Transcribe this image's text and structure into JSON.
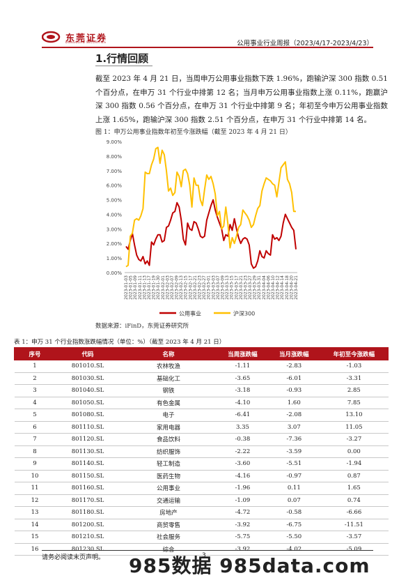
{
  "header": {
    "logo_text": "东莞证券",
    "logo_sub": "DONGGUAN SECURITIES",
    "report_title": "公用事业行业周报（2023/4/17-2023/4/23）"
  },
  "section": {
    "title": "1.行情回顾"
  },
  "paragraph": "截至 2023 年 4 月 21 日，当周申万公用事业指数下跌 1.96%，跑输沪深 300 指数 0.51 个百分点，在申万 31 个行业中排第 12 名；当月申万公用事业指数上涨 0.11%，跑赢沪深 300 指数 0.56 个百分点，在申万 31 个行业中排第 9 名；年初至今申万公用事业指数上涨 1.65%，跑输沪深 300 指数 2.51 个百分点，在申万 31 个行业中排第 14 名。",
  "figure": {
    "caption": "图 1：申万公用事业指数年初至今涨跌幅（截至 2023 年 4 月 21 日）",
    "source": "数据来源：iFinD，东莞证券研究所"
  },
  "chart_data": {
    "type": "line",
    "y_ticks": [
      "0.00%",
      "1.00%",
      "2.00%",
      "3.00%",
      "4.00%",
      "5.00%",
      "6.00%",
      "7.00%",
      "8.00%",
      "9.00%"
    ],
    "ylim": [
      0,
      9
    ],
    "x_labels": [
      "2023-01-03",
      "2023-01-05",
      "2023-01-09",
      "2023-01-11",
      "2023-01-13",
      "2023-01-17",
      "2023-01-19",
      "2023-01-30",
      "2023-02-01",
      "2023-02-03",
      "2023-02-07",
      "2023-02-09",
      "2023-02-13",
      "2023-02-15",
      "2023-02-17",
      "2023-02-21",
      "2023-02-23",
      "2023-02-27",
      "2023-03-01",
      "2023-03-03",
      "2023-03-07",
      "2023-03-09",
      "2023-03-13",
      "2023-03-15",
      "2023-03-17",
      "2023-03-21",
      "2023-03-23",
      "2023-03-27",
      "2023-03-29",
      "2023-03-31",
      "2023-04-04",
      "2023-04-06",
      "2023-04-10",
      "2023-04-12",
      "2023-04-14",
      "2023-04-18",
      "2023-04-20"
    ],
    "extra_last_label": "2023-04-21",
    "series": [
      {
        "name": "公用事业",
        "color": "#c00000",
        "values": [
          1.8,
          1.6,
          2.2,
          2.7,
          1.9,
          1.2,
          0.9,
          0.8,
          1.1,
          0.6,
          0.8,
          0.5,
          2.1,
          1.9,
          2.3,
          2.6,
          2.6,
          2.1,
          2.2,
          3.1,
          3.2,
          3.6,
          4.1,
          4.2,
          4.8,
          4.5,
          3.6,
          2.3,
          1.9,
          3.4,
          3.0,
          2.9,
          3.5,
          3.4,
          3.0,
          2.5,
          2.4,
          2.5,
          3.6,
          4.1,
          4.6,
          5.0,
          4.3,
          3.8,
          3.4,
          3.0,
          2.2,
          2.6,
          2.5,
          3.3,
          2.9,
          3.7,
          3.0,
          2.4,
          2.0,
          2.3,
          2.4,
          2.3,
          1.9,
          0.6,
          0.3,
          0.4,
          0.8,
          1.5,
          1.1,
          1.0,
          1.5,
          1.3,
          1.2,
          2.6,
          2.3,
          2.4,
          2.2,
          2.5,
          3.4,
          4.0,
          3.7,
          3.4,
          3.1,
          2.9,
          1.6
        ]
      },
      {
        "name": "沪深300",
        "color": "#ffc000",
        "values": [
          0.4,
          0.5,
          2.5,
          2.7,
          3.6,
          3.7,
          3.6,
          3.9,
          4.4,
          6.9,
          6.8,
          6.8,
          7.4,
          7.8,
          8.5,
          8.6,
          7.5,
          8.4,
          8.1,
          7.0,
          5.6,
          5.8,
          5.3,
          5.5,
          6.9,
          6.6,
          5.9,
          7.0,
          7.1,
          6.8,
          6.0,
          4.5,
          6.5,
          6.0,
          6.0,
          5.0,
          4.6,
          5.7,
          6.7,
          6.4,
          6.6,
          6.1,
          5.4,
          3.9,
          4.2,
          3.0,
          3.2,
          4.5,
          3.3,
          1.7,
          2.4,
          2.0,
          2.5,
          3.1,
          3.3,
          4.3,
          4.1,
          3.9,
          3.6,
          3.1,
          3.3,
          3.9,
          4.4,
          4.6,
          5.6,
          6.1,
          6.5,
          6.4,
          6.3,
          6.1,
          6.0,
          5.2,
          6.2,
          7.2,
          7.4,
          7.6,
          6.4,
          6.1,
          5.5,
          4.2,
          4.2
        ]
      }
    ]
  },
  "table": {
    "caption": "表 1：申万 31 个行业指数涨跌幅情况（单位：%）（截至 2023 年 4 月 21 日）",
    "headers": [
      "序号",
      "代码",
      "名称",
      "当周涨跌幅",
      "当月涨跌幅",
      "年初至今涨跌幅"
    ],
    "rows": [
      [
        "1",
        "801010.SL",
        "农林牧渔",
        "-1.11",
        "-2.83",
        "-1.03"
      ],
      [
        "2",
        "801030.SL",
        "基础化工",
        "-3.65",
        "-6.01",
        "-3.31"
      ],
      [
        "3",
        "801040.SL",
        "钢铁",
        "-3.18",
        "-0.93",
        "2.85"
      ],
      [
        "4",
        "801050.SL",
        "有色金属",
        "-4.10",
        "1.60",
        "7.85"
      ],
      [
        "5",
        "801080.SL",
        "电子",
        "-6.41",
        "-2.08",
        "13.10"
      ],
      [
        "6",
        "801110.SL",
        "家用电器",
        "3.35",
        "3.07",
        "11.05"
      ],
      [
        "7",
        "801120.SL",
        "食品饮料",
        "-0.38",
        "-7.36",
        "-3.27"
      ],
      [
        "8",
        "801130.SL",
        "纺织服饰",
        "-2.22",
        "-3.59",
        "0.00"
      ],
      [
        "9",
        "801140.SL",
        "轻工制造",
        "-3.60",
        "-5.51",
        "-1.94"
      ],
      [
        "10",
        "801150.SL",
        "医药生物",
        "-4.16",
        "-0.97",
        "0.87"
      ],
      [
        "11",
        "801160.SL",
        "公用事业",
        "-1.96",
        "0.11",
        "1.65"
      ],
      [
        "12",
        "801170.SL",
        "交通运输",
        "-1.09",
        "0.07",
        "0.74"
      ],
      [
        "13",
        "801180.SL",
        "房地产",
        "-4.72",
        "-0.58",
        "-6.66"
      ],
      [
        "14",
        "801200.SL",
        "商贸零售",
        "-3.92",
        "-6.75",
        "-11.51"
      ],
      [
        "15",
        "801210.SL",
        "社会服务",
        "-5.75",
        "-5.50",
        "-3.57"
      ],
      [
        "16",
        "801230.SL",
        "综合",
        "-3.92",
        "-4.02",
        "-5.09"
      ]
    ]
  },
  "footer": {
    "disclaimer": "请务必阅读末页声明。",
    "page": "3"
  },
  "watermark": "985数据 985data.com"
}
